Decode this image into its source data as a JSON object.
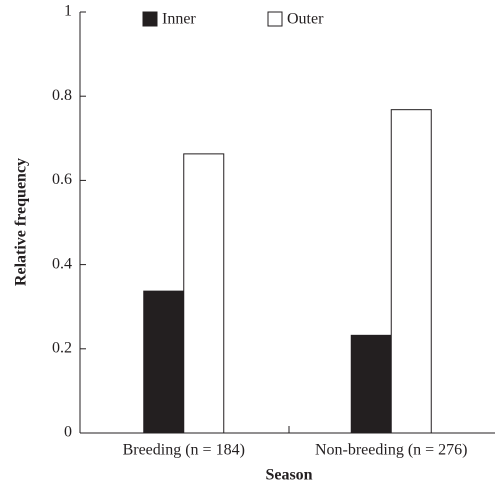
{
  "chart_data": {
    "type": "bar",
    "x_label": "Season",
    "y_label": "Relative frequency",
    "categories": [
      "Breeding (n = 184)",
      "Non-breeding (n = 276)"
    ],
    "series": [
      {
        "name": "Inner",
        "color": "#231f20",
        "values": [
          0.337,
          0.232
        ]
      },
      {
        "name": "Outer",
        "color": "#ffffff",
        "values": [
          0.663,
          0.768
        ]
      }
    ],
    "ylim": [
      0,
      1
    ],
    "yticks": [
      0,
      0.2,
      0.4,
      0.6,
      0.8,
      1
    ],
    "grid": false,
    "legend": "top"
  }
}
